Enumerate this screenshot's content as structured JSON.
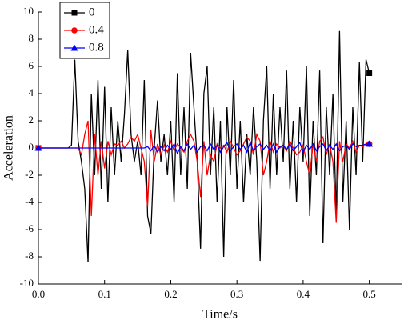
{
  "chart_data": {
    "type": "line",
    "xlabel": "Time/s",
    "ylabel": "Acceleration",
    "xlim": [
      0,
      0.55
    ],
    "ylim": [
      -10,
      10
    ],
    "xticks": [
      {
        "value": 0,
        "label": "0.0"
      },
      0.1,
      0.2,
      0.3,
      0.4,
      0.5
    ],
    "yticks": [
      -10,
      -8,
      -6,
      -4,
      -2,
      0,
      2,
      4,
      6,
      8,
      10
    ],
    "legend": "upper left",
    "x": [
      0,
      0.005,
      0.01,
      0.015,
      0.02,
      0.025,
      0.03,
      0.035,
      0.04,
      0.045,
      0.05,
      0.055,
      0.06,
      0.065,
      0.07,
      0.075,
      0.08,
      0.085,
      0.09,
      0.095,
      0.1,
      0.105,
      0.11,
      0.115,
      0.12,
      0.125,
      0.13,
      0.135,
      0.14,
      0.145,
      0.15,
      0.155,
      0.16,
      0.165,
      0.17,
      0.175,
      0.18,
      0.185,
      0.19,
      0.195,
      0.2,
      0.205,
      0.21,
      0.215,
      0.22,
      0.225,
      0.23,
      0.235,
      0.24,
      0.245,
      0.25,
      0.255,
      0.26,
      0.265,
      0.27,
      0.275,
      0.28,
      0.285,
      0.29,
      0.295,
      0.3,
      0.305,
      0.31,
      0.315,
      0.32,
      0.325,
      0.33,
      0.335,
      0.34,
      0.345,
      0.35,
      0.355,
      0.36,
      0.365,
      0.37,
      0.375,
      0.38,
      0.385,
      0.39,
      0.395,
      0.4,
      0.405,
      0.41,
      0.415,
      0.42,
      0.425,
      0.43,
      0.435,
      0.44,
      0.445,
      0.45,
      0.455,
      0.46,
      0.465,
      0.47,
      0.475,
      0.48,
      0.485,
      0.49,
      0.495,
      0.5
    ],
    "series": [
      {
        "name": "0",
        "color": "#000000",
        "marker": "square",
        "values": [
          0,
          0,
          0,
          0,
          0,
          0,
          0,
          0,
          0,
          0,
          0.2,
          6.5,
          0.5,
          -1,
          -3,
          -8.4,
          4,
          -2,
          5,
          -3,
          4.5,
          -4,
          3,
          -2,
          2,
          -1,
          2.5,
          7.2,
          1,
          -1,
          0.5,
          -2,
          5,
          -5,
          -6.3,
          0,
          3.5,
          -1,
          1,
          -2,
          2,
          -4,
          5.5,
          -2,
          3,
          -3,
          7,
          3,
          -1,
          -7.4,
          4,
          6,
          -2,
          3,
          -4,
          2,
          -8,
          3,
          -2,
          5,
          -3,
          2,
          -4,
          1,
          -2,
          3,
          -1,
          -8.3,
          2,
          6,
          -3,
          4,
          -2,
          3,
          -1,
          5.7,
          -3,
          2,
          -4,
          3,
          -1,
          6,
          -5,
          2,
          -2,
          5.7,
          -7,
          3,
          -2,
          4,
          -5,
          8.6,
          -4,
          2,
          -6,
          3,
          -2,
          6.3,
          -1,
          6.5,
          5.5
        ]
      },
      {
        "name": "0.4",
        "color": "#ff0000",
        "marker": "circle",
        "values": [
          0,
          0,
          0,
          0,
          0,
          0,
          0,
          0,
          0,
          0,
          0,
          0,
          0,
          -0.5,
          1,
          2,
          -5,
          1,
          -2,
          0.5,
          -1.5,
          0.5,
          -0.5,
          0.3,
          0.2,
          0.5,
          0,
          0.3,
          0.8,
          0.5,
          1,
          0,
          -1,
          -4.3,
          1.3,
          -1,
          0.3,
          -0.5,
          0.2,
          -0.3,
          0.5,
          -0.2,
          0.3,
          0,
          -0.3,
          0.5,
          1,
          0.5,
          -1,
          -3.6,
          0.5,
          -2,
          -0.5,
          -1,
          0.3,
          0,
          0.2,
          -0.3,
          0.5,
          0,
          -0.5,
          -0.2,
          0.3,
          0.8,
          0.5,
          -0.5,
          1,
          0.5,
          -2,
          -1,
          0.5,
          -0.3,
          0.3,
          0,
          0.2,
          -0.2,
          0.5,
          0,
          -0.5,
          -0.3,
          0.2,
          -1,
          -2,
          0.3,
          -1,
          0.5,
          0.8,
          -0.5,
          0.3,
          -1,
          -5.5,
          0.5,
          -1,
          0.3,
          0,
          0.5,
          -0.3,
          0.2,
          0.1,
          0.2,
          0.3
        ]
      },
      {
        "name": "0.8",
        "color": "#0000ff",
        "marker": "triangle",
        "values": [
          0,
          0,
          0,
          0,
          0,
          0,
          0,
          0,
          0,
          0,
          0,
          0,
          0,
          0,
          0,
          0,
          0,
          0,
          0,
          0,
          0,
          0,
          0,
          0,
          0,
          0,
          0,
          0,
          0,
          0,
          0,
          0,
          0,
          0.1,
          -0.2,
          0.2,
          -0.3,
          0.1,
          -0.2,
          0.2,
          -0.1,
          0.3,
          -0.4,
          0.1,
          -0.2,
          0.3,
          -0.1,
          0.2,
          -0.3,
          0.1,
          0.2,
          -0.2,
          0.3,
          -0.1,
          0.2,
          -0.3,
          0.1,
          0.4,
          -0.2,
          0.1,
          0.3,
          -0.1,
          0.2,
          -0.3,
          0.4,
          -0.2,
          0.1,
          0.3,
          -0.1,
          0.2,
          -0.2,
          0.3,
          -0.3,
          0.1,
          0.2,
          -0.1,
          0.3,
          -0.2,
          0.1,
          0.4,
          -0.3,
          0.2,
          -0.1,
          0.3,
          -0.2,
          0.1,
          0.3,
          -0.2,
          0.2,
          -0.1,
          0.3,
          -0.2,
          0.1,
          0.2,
          -0.1,
          0.3,
          0.1,
          0.2,
          0.2,
          0.3,
          0.3
        ]
      }
    ]
  }
}
